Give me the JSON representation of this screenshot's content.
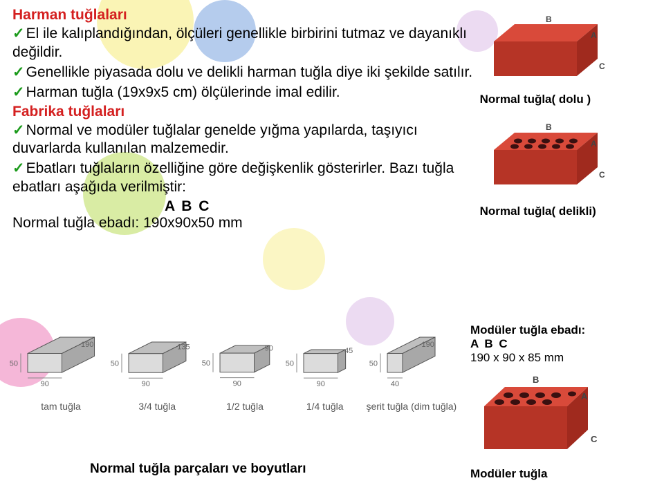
{
  "title1": "Harman tuğlaları",
  "bullets1": [
    "El ile kalıplandığından, ölçüleri genellikle birbirini tutmaz ve dayanıklı değildir.",
    "Genellikle piyasada dolu ve delikli harman tuğla diye iki şekilde satılır.",
    "Harman tuğla (19x9x5 cm) ölçülerinde imal edilir."
  ],
  "title2": "Fabrika tuğlaları",
  "bullets2": [
    "Normal ve modüler tuğlalar genelde yığma yapılarda, taşıyıcı duvarlarda kullanılan malzemedir.",
    "Ebatları tuğlaların özelliğine göre değişkenlik gösterirler. Bazı tuğla ebatları aşağıda verilmiştir:"
  ],
  "abc": "A   B   C",
  "normal_ebad": "Normal tuğla ebadı: 190x90x50 mm",
  "right_labels": {
    "dolu": "Normal tuğla( dolu )",
    "delikli": "Normal tuğla( delikli)"
  },
  "moduler": {
    "title": "Modüler tuğla ebadı:",
    "abc": " A     B     C",
    "dim": "190 x 90 x 85 mm",
    "label": "Modüler tuğla"
  },
  "bottom_caption": "Normal tuğla parçaları ve boyutları",
  "pieces": [
    {
      "label": "tam tuğla",
      "w": 90,
      "d": 190,
      "h": 50,
      "scale": 0.55
    },
    {
      "label": "3/4 tuğla",
      "w": 90,
      "d": 135,
      "h": 50,
      "scale": 0.55
    },
    {
      "label": "1/2 tuğla",
      "w": 90,
      "d": 90,
      "h": 50,
      "scale": 0.55
    },
    {
      "label": "1/4 tuğla",
      "w": 90,
      "d": 45,
      "h": 50,
      "scale": 0.55
    },
    {
      "label": "şerit tuğla (dim tuğla)",
      "w": 40,
      "d": 190,
      "h": 50,
      "scale": 0.55
    }
  ],
  "brick_colors": {
    "top": "#d94a3a",
    "front": "#b63426",
    "side": "#a02a1e",
    "hole": "#3a1010",
    "edge_label": "#6a6a6a"
  }
}
